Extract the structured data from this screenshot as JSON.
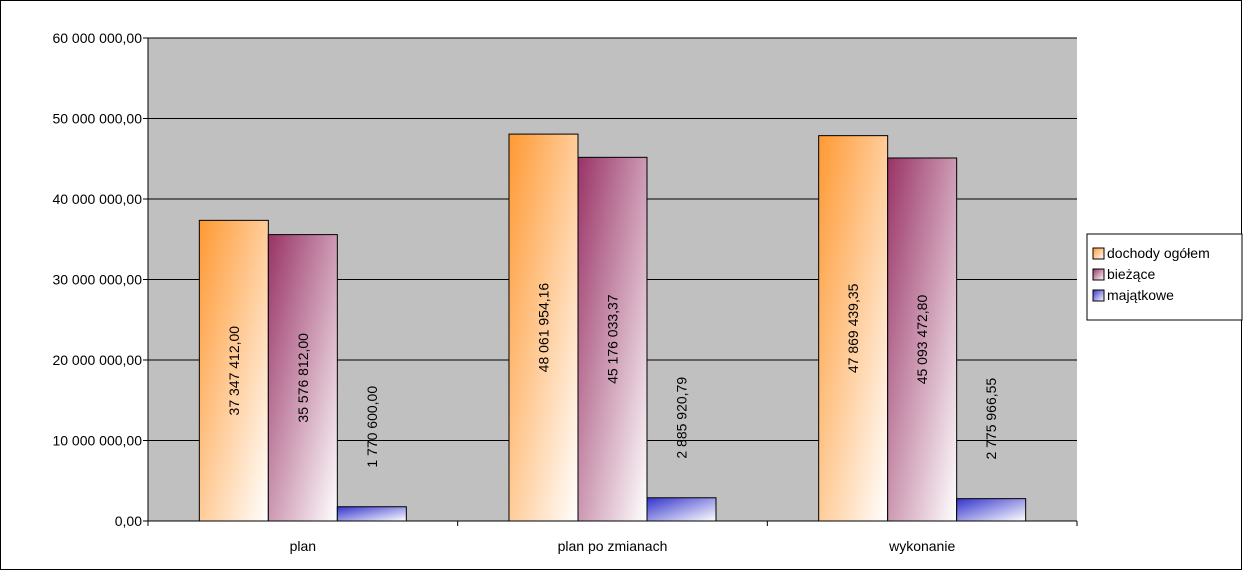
{
  "chart_data": {
    "type": "bar",
    "categories": [
      "plan",
      "plan po zmianach",
      "wykonanie"
    ],
    "series": [
      {
        "name": "dochody ogółem",
        "values": [
          37347412.0,
          48061954.16,
          47869439.35
        ],
        "labels": [
          "37 347 412,00",
          "48 061 954,16",
          "47 869 439,35"
        ],
        "color": "#ff9933"
      },
      {
        "name": "bieżące",
        "values": [
          35576812.0,
          45176033.37,
          45093472.8
        ],
        "labels": [
          "35 576 812,00",
          "45 176 033,37",
          "45 093 472,80"
        ],
        "color": "#993366"
      },
      {
        "name": "majątkowe",
        "values": [
          1770600.0,
          2885920.79,
          2775966.55
        ],
        "labels": [
          "1 770 600,00",
          "2 885 920,79",
          "2 775 966,55"
        ],
        "color": "#3333cc"
      }
    ],
    "ylim": [
      0,
      60000000
    ],
    "yticks": [
      0,
      10000000,
      20000000,
      30000000,
      40000000,
      50000000,
      60000000
    ],
    "ytick_labels": [
      "0,00",
      "10 000 000,00",
      "20 000 000,00",
      "30 000 000,00",
      "40 000 000,00",
      "50 000 000,00",
      "60 000 000,00"
    ],
    "grid": true,
    "plot_background": "#c0c0c0",
    "legend_position": "right"
  }
}
